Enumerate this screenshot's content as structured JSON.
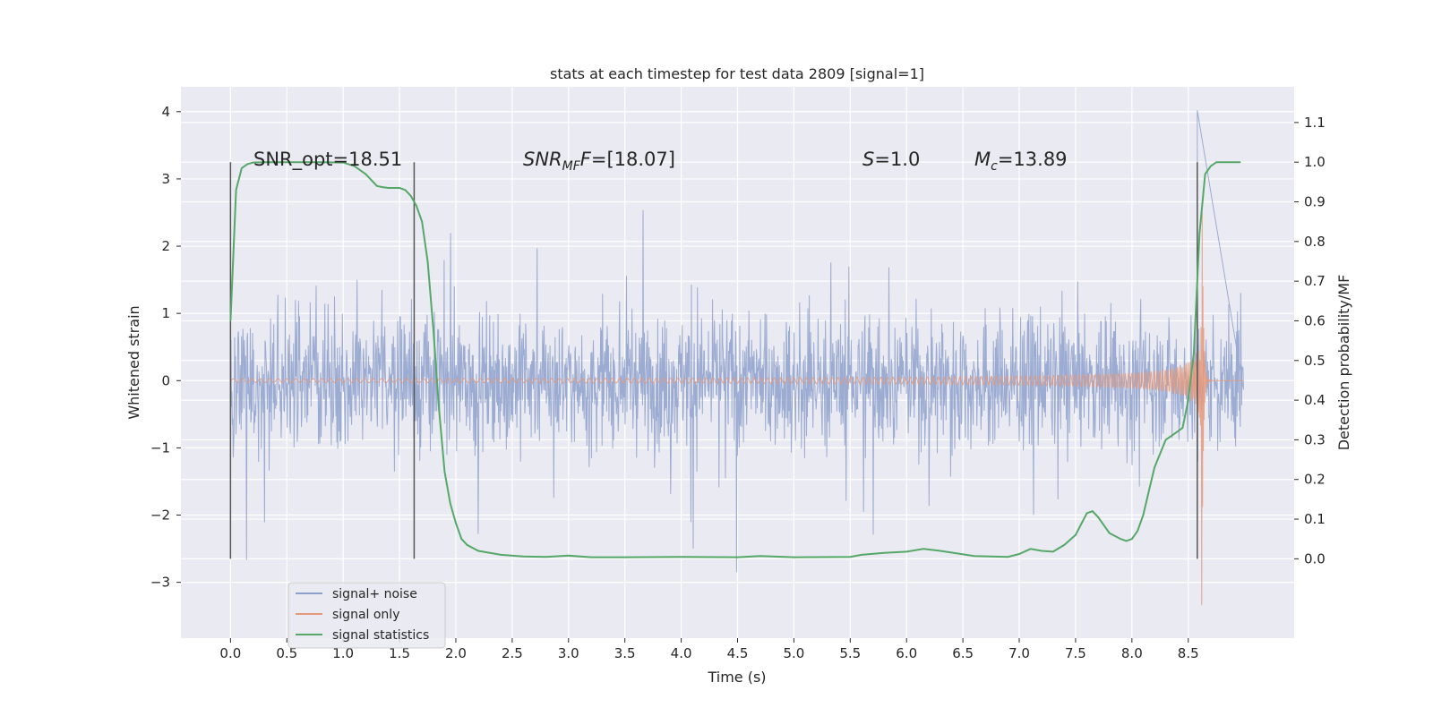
{
  "chart_data": {
    "type": "line",
    "title": "stats at each timestep for test data 2809 [signal=1]",
    "xlabel": "Time (s)",
    "ylabel": "Whitened strain",
    "ylabel_right": "Detection probability/MF",
    "xlim": [
      -0.44,
      9.44
    ],
    "ylim": [
      -3.83,
      4.37
    ],
    "ylim_right": [
      -0.2,
      1.19
    ],
    "x_ticks": [
      "0.0",
      "0.5",
      "1.0",
      "1.5",
      "2.0",
      "2.5",
      "3.0",
      "3.5",
      "4.0",
      "4.5",
      "5.0",
      "5.5",
      "6.0",
      "6.5",
      "7.0",
      "7.5",
      "8.0",
      "8.5"
    ],
    "y_ticks": [
      "−3",
      "−2",
      "−1",
      "0",
      "1",
      "2",
      "3",
      "4"
    ],
    "y_right_ticks": [
      "0.0",
      "0.1",
      "0.2",
      "0.3",
      "0.4",
      "0.5",
      "0.6",
      "0.7",
      "0.8",
      "0.9",
      "1.0",
      "1.1"
    ],
    "annotations": {
      "snr_opt": "SNR_opt=18.51",
      "snr_mf_sym": "SNR",
      "snr_mf_sub": "MF",
      "snr_mf_val": "=[18.07]",
      "s_sym": "S",
      "s_val": "=1.0",
      "mc_sym": "M",
      "mc_sub": "c",
      "mc_val": "=13.89"
    },
    "vertical_markers_x": [
      0.0,
      1.63,
      8.58
    ],
    "series": [
      {
        "name": "signal+ noise",
        "color": "#8da0cb",
        "description": "whitened strain noise, range approx -3.4 to 4.0, duration 0 to 8.99 s",
        "x_range": [
          0.0,
          8.99
        ],
        "amplitude": 1.6,
        "peak_x": 8.58,
        "peak_y": 4.02
      },
      {
        "name": "signal only",
        "color": "#e5987a",
        "description": "chirp signal growing in amplitude, merger near 8.62 s",
        "x_range": [
          0.0,
          8.99
        ],
        "merger_x": 8.62,
        "max_amplitude": 3.3,
        "min_y": -3.35
      },
      {
        "name": "signal statistics",
        "color": "#55a868",
        "x": [
          0.0,
          0.05,
          0.1,
          0.15,
          0.2,
          0.3,
          0.5,
          0.8,
          1.0,
          1.1,
          1.2,
          1.3,
          1.35,
          1.4,
          1.5,
          1.55,
          1.6,
          1.65,
          1.7,
          1.75,
          1.8,
          1.85,
          1.9,
          1.95,
          2.0,
          2.05,
          2.1,
          2.2,
          2.4,
          2.6,
          2.8,
          3.0,
          3.2,
          3.5,
          4.0,
          4.5,
          4.7,
          5.0,
          5.5,
          5.6,
          5.8,
          6.0,
          6.15,
          6.3,
          6.6,
          6.9,
          7.0,
          7.1,
          7.2,
          7.3,
          7.4,
          7.5,
          7.6,
          7.65,
          7.7,
          7.8,
          7.9,
          7.95,
          8.0,
          8.05,
          8.1,
          8.15,
          8.2,
          8.3,
          8.4,
          8.45,
          8.5,
          8.55,
          8.6,
          8.65,
          8.7,
          8.75,
          8.85,
          8.96
        ],
        "values": [
          0.6,
          0.93,
          0.985,
          0.995,
          0.999,
          1.0,
          1.0,
          1.0,
          0.999,
          0.99,
          0.97,
          0.94,
          0.937,
          0.935,
          0.935,
          0.93,
          0.915,
          0.89,
          0.85,
          0.75,
          0.58,
          0.38,
          0.22,
          0.14,
          0.09,
          0.05,
          0.035,
          0.02,
          0.01,
          0.006,
          0.005,
          0.008,
          0.004,
          0.004,
          0.005,
          0.004,
          0.007,
          0.004,
          0.005,
          0.01,
          0.015,
          0.018,
          0.025,
          0.02,
          0.007,
          0.005,
          0.012,
          0.025,
          0.02,
          0.018,
          0.035,
          0.06,
          0.115,
          0.12,
          0.105,
          0.065,
          0.05,
          0.045,
          0.05,
          0.07,
          0.11,
          0.17,
          0.23,
          0.3,
          0.32,
          0.33,
          0.4,
          0.52,
          0.82,
          0.97,
          0.99,
          1.0,
          1.0,
          1.0
        ]
      }
    ],
    "legend": {
      "placement": "lower-left",
      "entries": [
        {
          "label": "signal+ noise",
          "color": "#8da0cb"
        },
        {
          "label": "signal only",
          "color": "#e5987a"
        },
        {
          "label": "signal statistics",
          "color": "#55a868"
        }
      ]
    },
    "grid": true
  }
}
